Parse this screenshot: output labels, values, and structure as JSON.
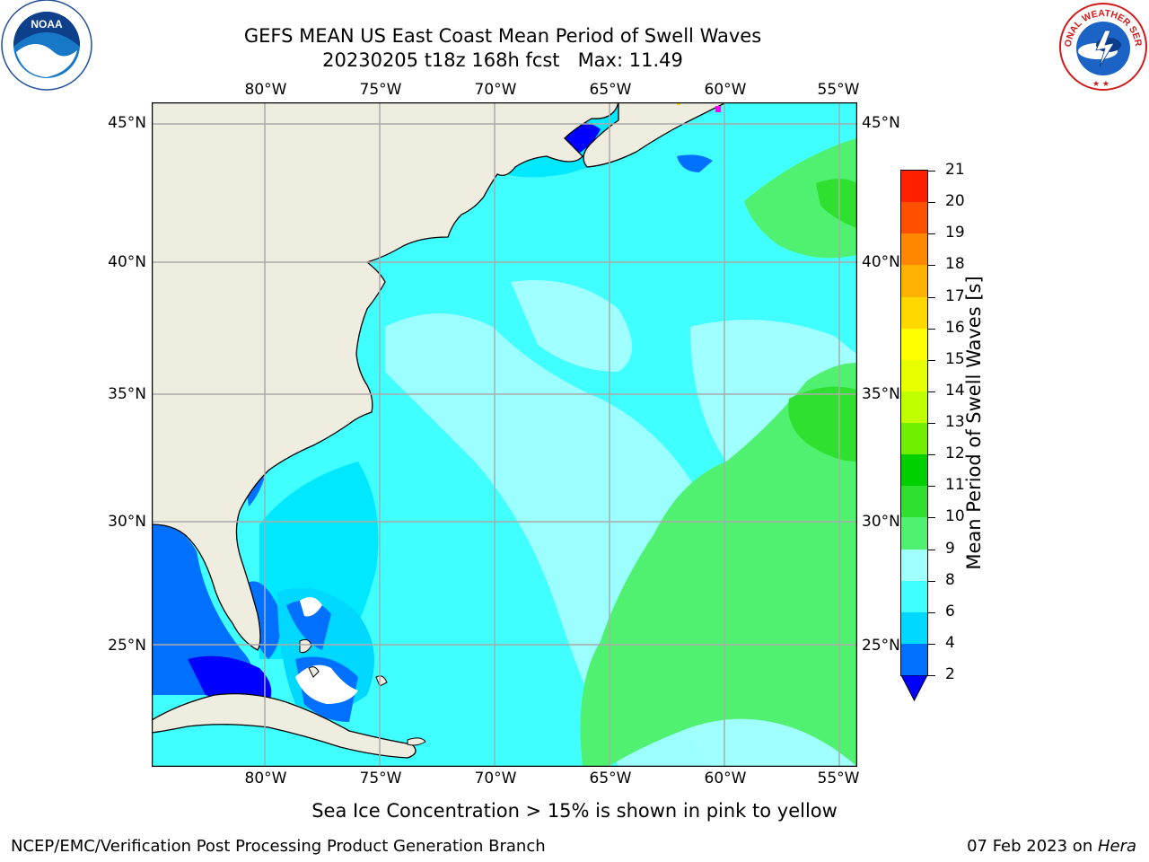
{
  "header": {
    "title_line1": "GEFS MEAN US East Coast Mean Period of Swell Waves",
    "title_line2": "20230205 t18z 168h fcst   Max: 11.49"
  },
  "logos": {
    "left": "NOAA",
    "right": "NATIONAL WEATHER SERVICE"
  },
  "map": {
    "lon_labels": [
      "80°W",
      "75°W",
      "70°W",
      "65°W",
      "60°W",
      "55°W"
    ],
    "lat_labels": [
      "45°N",
      "40°N",
      "35°N",
      "30°N",
      "25°N"
    ]
  },
  "colorbar": {
    "label": "Mean Period of Swell Waves [s]",
    "ticks": [
      "2",
      "4",
      "6",
      "8",
      "9",
      "10",
      "11",
      "12",
      "13",
      "14",
      "15",
      "16",
      "17",
      "18",
      "19",
      "20",
      "21"
    ],
    "colors": [
      "#0070ff",
      "#00d8ff",
      "#40ffff",
      "#a0ffff",
      "#50f070",
      "#30e030",
      "#00d000",
      "#70f000",
      "#c0ff00",
      "#e8ff00",
      "#ffff00",
      "#ffd800",
      "#ffb000",
      "#ff8800",
      "#ff5000",
      "#ff2000"
    ],
    "extend_color": "#0000ff"
  },
  "footer": {
    "note": "Sea Ice Concentration > 15% is shown in pink to yellow",
    "credit": "NCEP/EMC/Verification Post Processing Product Generation Branch",
    "date": "07 Feb 2023 on ",
    "machine": "Hera"
  }
}
